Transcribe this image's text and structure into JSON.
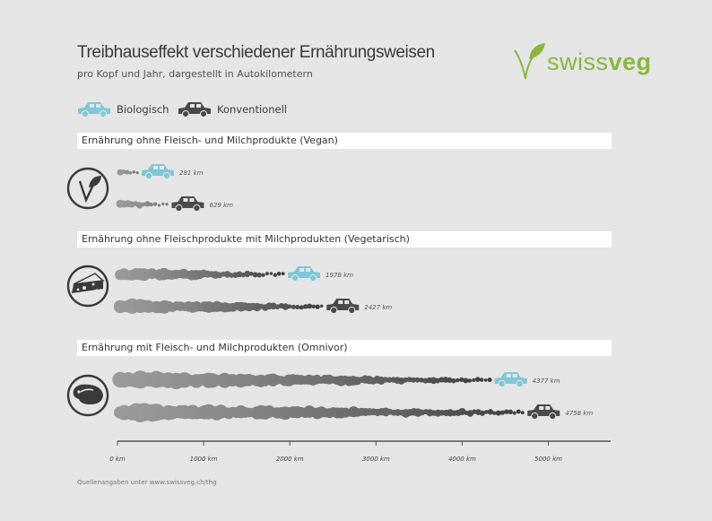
{
  "header": {
    "title": "Treibhauseffekt verschiedener Ernährungsweisen",
    "subtitle": "pro Kopf und Jahr, dargestellt in Autokilometern"
  },
  "logo": {
    "text_light": "swiss",
    "text_bold": "veg",
    "color": "#8ab83c"
  },
  "legend": [
    {
      "label": "Biologisch",
      "color": "#7ec8d8",
      "icon": "car-icon"
    },
    {
      "label": "Konventionell",
      "color": "#4a4a4a",
      "icon": "car-icon"
    }
  ],
  "source_note": "Quellenangaben unter www.swissveg.ch/thg",
  "chart_data": {
    "type": "bar",
    "orientation": "horizontal",
    "unit": "km",
    "xlim": [
      0,
      5700
    ],
    "x_ticks": [
      0,
      1000,
      2000,
      3000,
      4000,
      5000
    ],
    "x_tick_labels": [
      "0 km",
      "1000 km",
      "2000 km",
      "3000 km",
      "4000 km",
      "5000 km"
    ],
    "groups": [
      {
        "label": "Ernährung ohne Fleisch- und Milchprodukte (Vegan)",
        "icon": "vegan-leaf-icon",
        "bars": [
          {
            "series": "Biologisch",
            "value": 281,
            "label": "281 km"
          },
          {
            "series": "Konventionell",
            "value": 629,
            "label": "629 km"
          }
        ]
      },
      {
        "label": "Ernährung ohne Fleischprodukte mit Milchprodukten (Vegetarisch)",
        "icon": "cheese-icon",
        "bars": [
          {
            "series": "Biologisch",
            "value": 1978,
            "label": "1978 km"
          },
          {
            "series": "Konventionell",
            "value": 2427,
            "label": "2427 km"
          }
        ]
      },
      {
        "label": "Ernährung mit Fleisch- und Milchprodukten (Omnivor)",
        "icon": "steak-icon",
        "bars": [
          {
            "series": "Biologisch",
            "value": 4377,
            "label": "4377 km"
          },
          {
            "series": "Konventionell",
            "value": 4758,
            "label": "4758 km"
          }
        ]
      }
    ],
    "series_colors": {
      "Biologisch": "#7ec8d8",
      "Konventionell": "#4a4a4a"
    },
    "smoke_color_start": "#9a9a9a",
    "smoke_color_end": "#3c3c3c"
  }
}
